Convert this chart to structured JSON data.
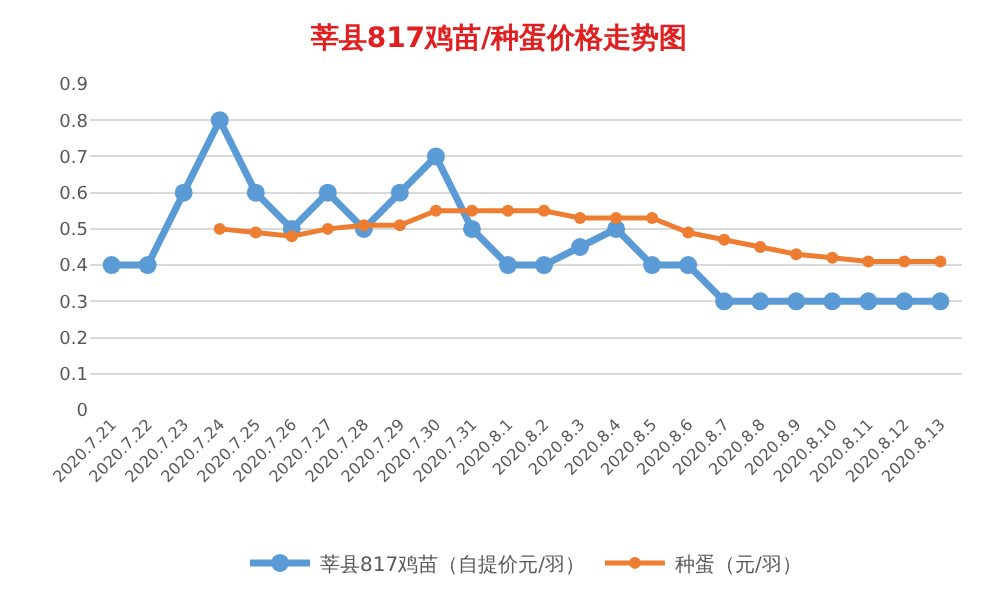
{
  "chart_data": {
    "type": "line",
    "title": "莘县817鸡苗/种蛋价格走势图",
    "categories": [
      "2020.7.21",
      "2020.7.22",
      "2020.7.23",
      "2020.7.24",
      "2020.7.25",
      "2020.7.26",
      "2020.7.27",
      "2020.7.28",
      "2020.7.29",
      "2020.7.30",
      "2020.7.31",
      "2020.8.1",
      "2020.8.2",
      "2020.8.3",
      "2020.8.4",
      "2020.8.5",
      "2020.8.6",
      "2020.8.7",
      "2020.8.8",
      "2020.8.9",
      "2020.8.10",
      "2020.8.11",
      "2020.8.12",
      "2020.8.13"
    ],
    "series": [
      {
        "name": "莘县817鸡苗（自提价元/羽）",
        "color": "#5b9bd5",
        "values": [
          0.4,
          0.4,
          0.6,
          0.8,
          0.6,
          0.5,
          0.6,
          0.5,
          0.6,
          0.7,
          0.5,
          0.4,
          0.4,
          0.45,
          0.5,
          0.4,
          0.4,
          0.3,
          0.3,
          0.3,
          0.3,
          0.3,
          0.3,
          0.3
        ]
      },
      {
        "name": "种蛋（元/羽）",
        "color": "#ed7d31",
        "values": [
          null,
          null,
          null,
          0.5,
          0.49,
          0.48,
          0.5,
          0.51,
          0.51,
          0.55,
          0.55,
          0.55,
          0.55,
          0.53,
          0.53,
          0.53,
          0.49,
          0.47,
          0.45,
          0.43,
          0.42,
          0.41,
          0.41,
          0.41
        ]
      }
    ],
    "ylim": [
      0,
      0.9
    ],
    "yticks": [
      0,
      0.1,
      0.2,
      0.3,
      0.4,
      0.5,
      0.6,
      0.7,
      0.8,
      0.9
    ],
    "grid": "y",
    "legend": "bottom",
    "marker": "circle",
    "line_style": "solid"
  }
}
